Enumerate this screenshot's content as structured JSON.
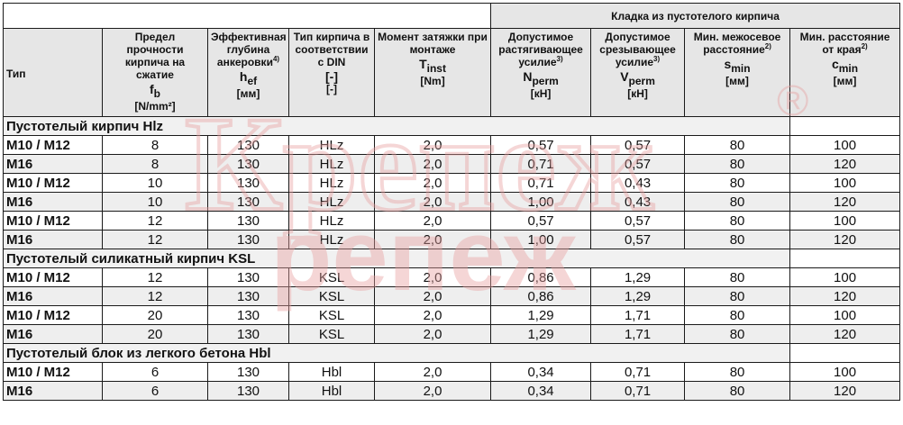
{
  "header": {
    "group_title": "Кладка из пустотелого кирпича",
    "columns": [
      {
        "line1": "Тип",
        "symbol": "",
        "sub": "",
        "unit": ""
      },
      {
        "line1": "Предел прочности кирпича на сжатие",
        "symbol": "f",
        "sub": "b",
        "unit": "[N/mm²]"
      },
      {
        "line1": "Эффективная глубина анкеровки",
        "note": "4)",
        "symbol": "h",
        "sub": "ef",
        "unit": "[мм]"
      },
      {
        "line1": "Тип кирпича в соответствии с DIN",
        "symbol": "[-]",
        "sub": "",
        "unit": "[-]"
      },
      {
        "line1": "Момент затяжки при монтаже",
        "symbol": "T",
        "sub": "inst",
        "unit": "[Nm]"
      },
      {
        "line1": "Допустимое растягивающее усилие",
        "note": "3)",
        "symbol": "N",
        "sub": "perm",
        "unit": "[кН]"
      },
      {
        "line1": "Допустимое срезывающее усилие",
        "note": "3)",
        "symbol": "V",
        "sub": "perm",
        "unit": "[кН]"
      },
      {
        "line1": "Мин. межосевое расстояние",
        "note": "2)",
        "symbol": "s",
        "sub": "min",
        "unit": "[мм]"
      },
      {
        "line1": "Мин. расстояние от края",
        "note": "2)",
        "symbol": "c",
        "sub": "min",
        "unit": "[мм]"
      }
    ]
  },
  "sections": [
    {
      "title": "Пустотелый кирпич Hlz",
      "rows": [
        [
          "M10 / M12",
          "8",
          "130",
          "HLz",
          "2,0",
          "0,57",
          "0,57",
          "80",
          "100"
        ],
        [
          "M16",
          "8",
          "130",
          "HLz",
          "2,0",
          "0,71",
          "0,57",
          "80",
          "120"
        ],
        [
          "M10 / M12",
          "10",
          "130",
          "HLz",
          "2,0",
          "0,71",
          "0,43",
          "80",
          "100"
        ],
        [
          "M16",
          "10",
          "130",
          "HLz",
          "2,0",
          "1,00",
          "0,43",
          "80",
          "120"
        ],
        [
          "M10 / M12",
          "12",
          "130",
          "HLz",
          "2,0",
          "0,57",
          "0,57",
          "80",
          "100"
        ],
        [
          "M16",
          "12",
          "130",
          "HLz",
          "2,0",
          "1,00",
          "0,57",
          "80",
          "120"
        ]
      ]
    },
    {
      "title": "Пустотелый силикатный кирпич KSL",
      "rows": [
        [
          "M10 / M12",
          "12",
          "130",
          "KSL",
          "2,0",
          "0,86",
          "1,29",
          "80",
          "100"
        ],
        [
          "M16",
          "12",
          "130",
          "KSL",
          "2,0",
          "0,86",
          "1,29",
          "80",
          "120"
        ],
        [
          "M10 / M12",
          "20",
          "130",
          "KSL",
          "2,0",
          "1,29",
          "1,71",
          "80",
          "100"
        ],
        [
          "M16",
          "20",
          "130",
          "KSL",
          "2,0",
          "1,29",
          "1,71",
          "80",
          "120"
        ]
      ]
    },
    {
      "title": "Пустотелый блок из легкого бетона Hbl",
      "rows": [
        [
          "M10 / M12",
          "6",
          "130",
          "Hbl",
          "2,0",
          "0,34",
          "0,71",
          "80",
          "100"
        ],
        [
          "M16",
          "6",
          "130",
          "Hbl",
          "2,0",
          "0,34",
          "0,71",
          "80",
          "120"
        ]
      ]
    }
  ],
  "watermark": {
    "line1": "Крепеж",
    "line2": "репеж",
    "mark": "®",
    "color": "#e8a0a0"
  }
}
